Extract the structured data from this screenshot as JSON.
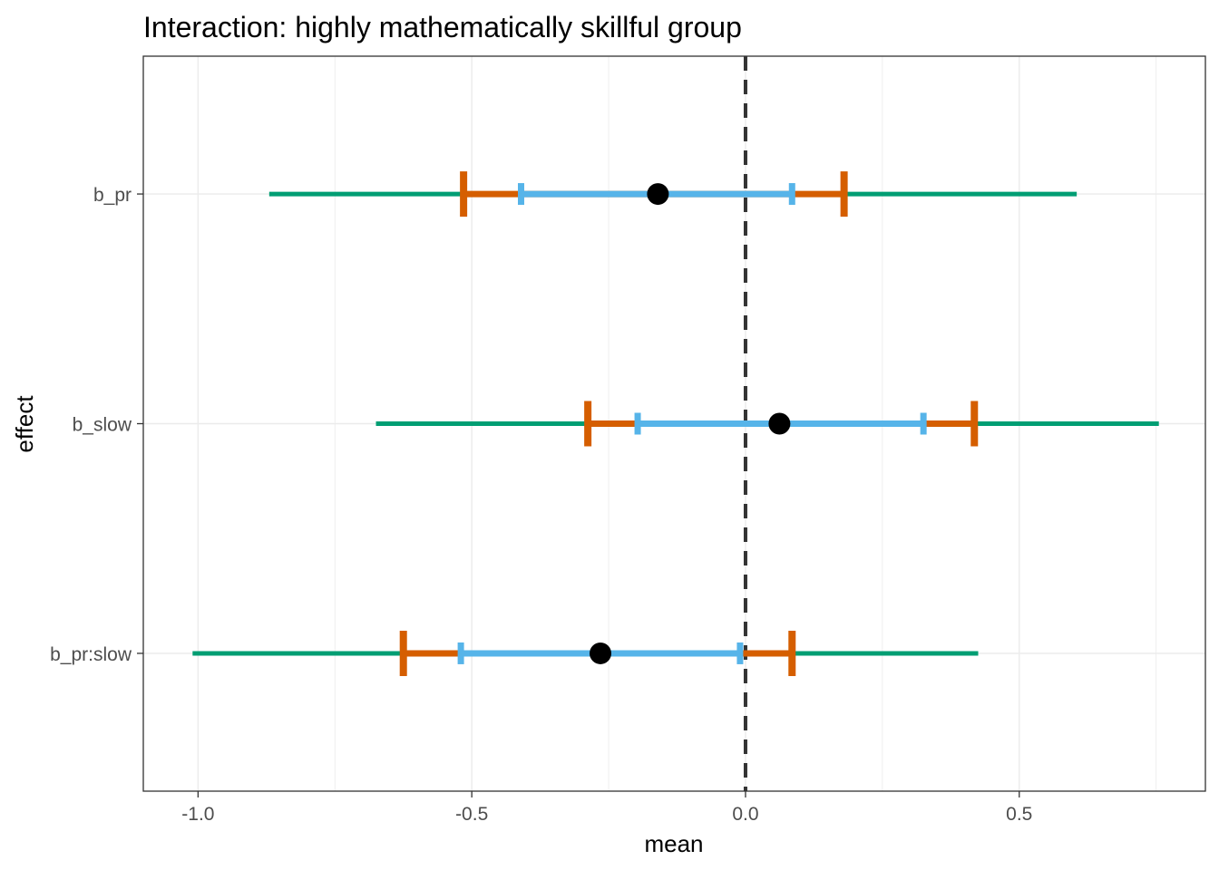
{
  "chart_data": {
    "type": "interval",
    "title": "Interaction: highly mathematically skillful group",
    "xlabel": "mean",
    "ylabel": "effect",
    "xlim": [
      -1.1,
      0.84
    ],
    "xticks": [
      -1.0,
      -0.5,
      0.0,
      0.5
    ],
    "xtick_labels": [
      "-1.0",
      "-0.5",
      "0.0",
      "0.5"
    ],
    "grid": true,
    "reference_line": {
      "x": 0.0,
      "style": "dashed",
      "color": "#333333"
    },
    "colors": {
      "outer": "#009E73",
      "middle": "#D55E00",
      "inner": "#56B4E9",
      "point": "#000000"
    },
    "effects": [
      {
        "label": "b_pr",
        "mean": -0.16,
        "inner": [
          -0.41,
          0.085
        ],
        "middle": [
          -0.515,
          0.18
        ],
        "outer": [
          -0.87,
          0.605
        ]
      },
      {
        "label": "b_slow",
        "mean": 0.062,
        "inner": [
          -0.197,
          0.325
        ],
        "middle": [
          -0.288,
          0.418
        ],
        "outer": [
          -0.675,
          0.755
        ]
      },
      {
        "label": "b_pr:slow",
        "mean": -0.265,
        "inner": [
          -0.52,
          -0.01
        ],
        "middle": [
          -0.625,
          0.085
        ],
        "outer": [
          -1.01,
          0.425
        ]
      }
    ]
  }
}
